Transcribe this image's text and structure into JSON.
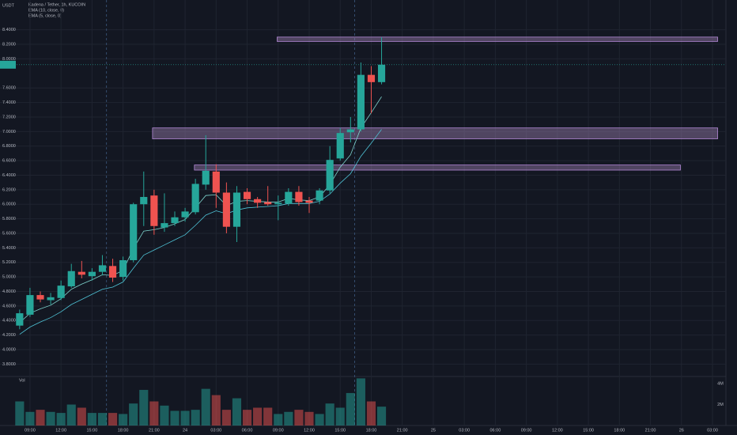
{
  "chart_data": {
    "type": "candlestick",
    "title": "Kadena / Tether, 1h, KUCOIN",
    "y_unit": "USDT",
    "up_color": "#26a69a",
    "down_color": "#ef5350",
    "x": [
      0,
      1,
      2,
      3,
      4,
      5,
      6,
      7,
      8,
      9,
      10,
      11,
      12,
      13,
      14,
      15,
      16,
      17,
      18,
      19,
      20,
      21,
      22,
      23,
      24,
      25,
      26,
      27,
      28,
      29,
      30,
      31,
      32,
      33,
      34,
      35
    ],
    "open": [
      4.33,
      4.48,
      4.75,
      4.68,
      4.71,
      4.87,
      5.07,
      5.01,
      5.07,
      5.15,
      5.0,
      5.23,
      6.0,
      6.12,
      5.68,
      5.74,
      5.82,
      5.89,
      6.27,
      6.45,
      6.16,
      5.69,
      6.17,
      6.07,
      6.03,
      6.0,
      6.01,
      6.17,
      6.05,
      6.05,
      6.19,
      6.63,
      6.99,
      7.03,
      7.78,
      7.68
    ],
    "high": [
      4.55,
      4.85,
      4.8,
      4.78,
      4.95,
      5.18,
      5.22,
      5.12,
      5.3,
      5.25,
      5.28,
      6.02,
      6.45,
      6.2,
      6.15,
      5.9,
      5.95,
      6.35,
      6.95,
      6.55,
      6.3,
      6.25,
      6.22,
      6.1,
      6.25,
      6.12,
      6.22,
      6.25,
      6.1,
      6.22,
      6.8,
      7.05,
      7.2,
      7.95,
      7.9,
      8.3
    ],
    "low": [
      4.28,
      4.45,
      4.65,
      4.62,
      4.68,
      4.85,
      4.98,
      4.95,
      5.02,
      4.93,
      4.95,
      5.2,
      5.7,
      5.58,
      5.62,
      5.7,
      5.76,
      5.86,
      6.2,
      5.95,
      5.6,
      5.48,
      6.0,
      5.95,
      5.98,
      5.78,
      5.98,
      5.98,
      5.88,
      6.0,
      6.15,
      6.6,
      6.85,
      7.0,
      7.25,
      7.65
    ],
    "close": [
      4.5,
      4.75,
      4.69,
      4.72,
      4.88,
      5.08,
      5.03,
      5.07,
      5.16,
      4.99,
      5.23,
      6.0,
      6.1,
      5.7,
      5.74,
      5.82,
      5.9,
      6.28,
      6.46,
      6.16,
      5.69,
      6.16,
      6.07,
      6.02,
      6.0,
      6.02,
      6.17,
      6.03,
      6.02,
      6.19,
      6.61,
      6.98,
      7.03,
      7.78,
      7.68,
      7.92
    ],
    "series": [
      {
        "name": "EMA (10, close, 0)",
        "color": "#4fc3d6",
        "values": [
          4.21,
          4.31,
          4.38,
          4.44,
          4.52,
          4.62,
          4.69,
          4.76,
          4.83,
          4.86,
          4.93,
          5.12,
          5.3,
          5.37,
          5.44,
          5.51,
          5.58,
          5.71,
          5.85,
          5.91,
          5.87,
          5.92,
          5.95,
          5.96,
          5.97,
          5.98,
          6.01,
          6.01,
          6.01,
          6.04,
          6.14,
          6.29,
          6.42,
          6.66,
          6.84,
          7.03
        ]
      },
      {
        "name": "EMA (5, close, 0)",
        "color": "#7fd6cf",
        "values": [
          4.37,
          4.5,
          4.56,
          4.61,
          4.7,
          4.83,
          4.9,
          4.96,
          5.03,
          5.02,
          5.09,
          5.39,
          5.63,
          5.65,
          5.68,
          5.73,
          5.79,
          5.95,
          6.12,
          6.13,
          5.98,
          6.04,
          6.05,
          6.04,
          6.03,
          6.03,
          6.08,
          6.06,
          6.05,
          6.1,
          6.27,
          6.51,
          6.68,
          7.05,
          7.26,
          7.48
        ]
      }
    ],
    "zones": [
      {
        "x": [
          24.9,
          67.5
        ],
        "y": [
          8.24,
          8.3
        ]
      },
      {
        "x": [
          12.85,
          67.5
        ],
        "y": [
          6.9,
          7.05
        ]
      },
      {
        "x": [
          16.9,
          63.9
        ],
        "y": [
          6.47,
          6.54
        ]
      }
    ],
    "session_lines": [
      8.4,
      32.4
    ],
    "xlim": [
      -1.9,
      68.3
    ],
    "xticks": [
      {
        "value": 1,
        "label": "09:00"
      },
      {
        "value": 4,
        "label": "12:00"
      },
      {
        "value": 7,
        "label": "15:00"
      },
      {
        "value": 10,
        "label": "18:00"
      },
      {
        "value": 13,
        "label": "21:00"
      },
      {
        "value": 16,
        "label": "24"
      },
      {
        "value": 19,
        "label": "03:00"
      },
      {
        "value": 22,
        "label": "06:00"
      },
      {
        "value": 25,
        "label": "09:00"
      },
      {
        "value": 28,
        "label": "12:00"
      },
      {
        "value": 31,
        "label": "15:00"
      },
      {
        "value": 34,
        "label": "18:00"
      },
      {
        "value": 37,
        "label": "21:00"
      },
      {
        "value": 40,
        "label": "25"
      },
      {
        "value": 43,
        "label": "03:00"
      },
      {
        "value": 46,
        "label": "06:00"
      },
      {
        "value": 49,
        "label": "09:00"
      },
      {
        "value": 52,
        "label": "12:00"
      },
      {
        "value": 55,
        "label": "15:00"
      },
      {
        "value": 58,
        "label": "18:00"
      },
      {
        "value": 61,
        "label": "21:00"
      },
      {
        "value": 64,
        "label": "26"
      },
      {
        "value": 67,
        "label": "03:00"
      }
    ],
    "ylim": [
      3.63,
      8.81
    ],
    "yticks": [
      {
        "value": 3.8,
        "label": "3.8000"
      },
      {
        "value": 4.0,
        "label": "4.0000"
      },
      {
        "value": 4.2,
        "label": "4.2000"
      },
      {
        "value": 4.4,
        "label": "4.4000"
      },
      {
        "value": 4.6,
        "label": "4.6000"
      },
      {
        "value": 4.8,
        "label": "4.8000"
      },
      {
        "value": 5.0,
        "label": "5.0000"
      },
      {
        "value": 5.2,
        "label": "5.2000"
      },
      {
        "value": 5.4,
        "label": "5.4000"
      },
      {
        "value": 5.6,
        "label": "5.6000"
      },
      {
        "value": 5.8,
        "label": "5.8000"
      },
      {
        "value": 6.0,
        "label": "6.0000"
      },
      {
        "value": 6.2,
        "label": "6.2000"
      },
      {
        "value": 6.4,
        "label": "6.4000"
      },
      {
        "value": 6.6,
        "label": "6.6000"
      },
      {
        "value": 6.8,
        "label": "6.8000"
      },
      {
        "value": 7.0,
        "label": "7.0000"
      },
      {
        "value": 7.2,
        "label": "7.2000"
      },
      {
        "value": 7.4,
        "label": "7.4000"
      },
      {
        "value": 7.6,
        "label": "7.6000"
      },
      {
        "value": 8.0,
        "label": "8.0000"
      },
      {
        "value": 8.2,
        "label": "8.2000"
      },
      {
        "value": 8.4,
        "label": "8.4000"
      }
    ],
    "volume": {
      "label": "Vol",
      "values": [
        2.3,
        1.3,
        1.5,
        1.3,
        1.2,
        2.0,
        1.7,
        1.2,
        1.2,
        1.2,
        1.1,
        2.1,
        3.4,
        2.3,
        1.9,
        1.4,
        1.4,
        1.5,
        3.5,
        2.9,
        1.5,
        2.6,
        1.5,
        1.7,
        1.7,
        1.1,
        1.3,
        1.5,
        1.3,
        1.1,
        2.1,
        1.7,
        3.1,
        4.5,
        2.3,
        1.8
      ],
      "ylim": [
        0,
        4.68
      ],
      "yticks": [
        {
          "value": 2,
          "label": "2M"
        },
        {
          "value": 4,
          "label": "4M"
        }
      ]
    },
    "zone_color": "#9c7fb0"
  }
}
